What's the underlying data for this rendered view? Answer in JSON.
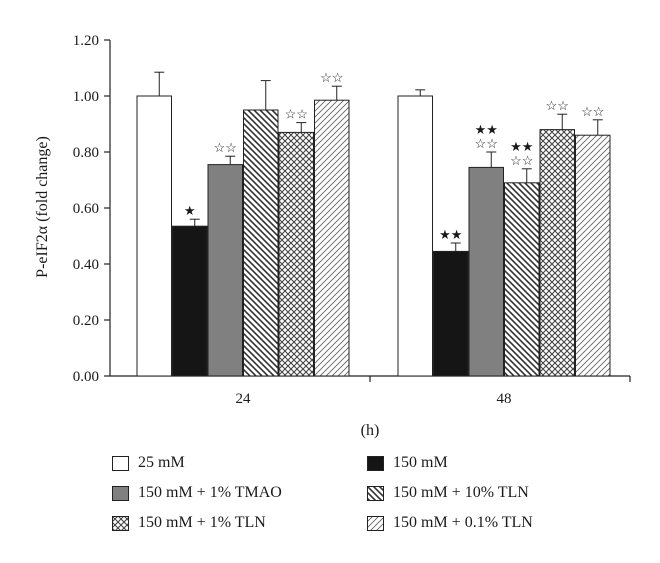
{
  "chart_data": {
    "type": "bar",
    "categories": [
      "24",
      "48"
    ],
    "xlabel": "(h)",
    "ylabel": "P-eIF2α (fold change)",
    "ylim": [
      0,
      1.2
    ],
    "yticks": [
      "0.00",
      "0.20",
      "0.40",
      "0.60",
      "0.80",
      "1.00",
      "1.20"
    ],
    "grid": false,
    "legend_position": "bottom",
    "series": [
      {
        "name": "25 mM",
        "values": [
          1.0,
          1.0
        ],
        "errors": [
          0.085,
          0.022
        ],
        "significance": [
          "",
          ""
        ],
        "color": "#ffffff",
        "pattern": "solid"
      },
      {
        "name": "150 mM",
        "values": [
          0.535,
          0.445
        ],
        "errors": [
          0.025,
          0.03
        ],
        "significance": [
          "★",
          "★★"
        ],
        "color": "#151515",
        "pattern": "solid"
      },
      {
        "name": "150 mM + 1% TMAO",
        "values": [
          0.755,
          0.745
        ],
        "errors": [
          0.03,
          0.055
        ],
        "significance": [
          "☆☆",
          "★★\n☆☆"
        ],
        "color": "#808080",
        "pattern": "solid"
      },
      {
        "name": "150 mM + 10% TLN",
        "values": [
          0.95,
          0.69
        ],
        "errors": [
          0.105,
          0.05
        ],
        "significance": [
          "",
          "★★\n☆☆"
        ],
        "color": "#ffffff",
        "pattern": "diag-dense"
      },
      {
        "name": "150 mM + 1% TLN",
        "values": [
          0.87,
          0.88
        ],
        "errors": [
          0.035,
          0.055
        ],
        "significance": [
          "☆☆",
          "☆☆"
        ],
        "color": "#ffffff",
        "pattern": "crosshatch"
      },
      {
        "name": "150 mM + 0.1% TLN",
        "values": [
          0.985,
          0.86
        ],
        "errors": [
          0.05,
          0.055
        ],
        "significance": [
          "☆☆",
          "☆☆"
        ],
        "color": "#ffffff",
        "pattern": "diag-sparse"
      }
    ]
  }
}
